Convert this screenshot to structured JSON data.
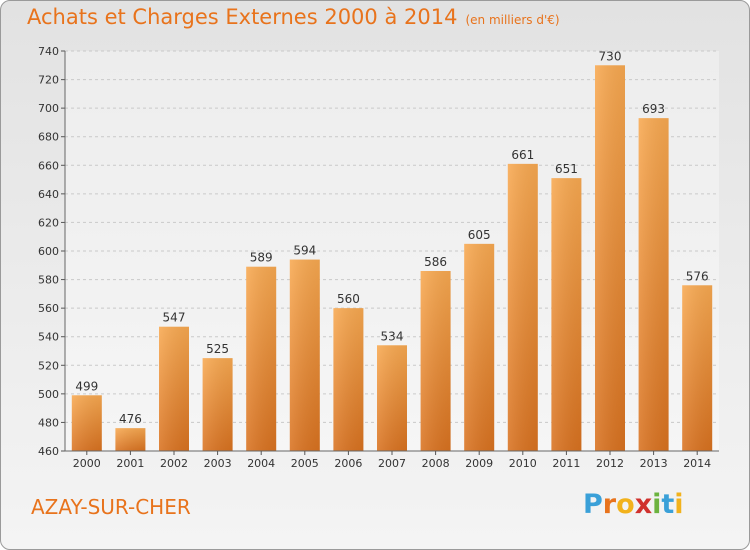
{
  "title": "Achats et Charges Externes 2000 à 2014",
  "subtitle": "(en milliers d'€)",
  "location": "AZAY-SUR-CHER",
  "brand": {
    "letters": [
      "P",
      "r",
      "o",
      "x",
      "i",
      "t",
      "i"
    ],
    "colors": [
      "#3aa0d8",
      "#e8731c",
      "#f2b21c",
      "#d0312d",
      "#6cb33f",
      "#3aa0d8",
      "#f2b21c"
    ]
  },
  "colors": {
    "accent": "#e8731c",
    "bar_light": "#f7a85a",
    "bar_dark": "#d97220"
  },
  "chart_data": {
    "type": "bar",
    "categories": [
      "2000",
      "2001",
      "2002",
      "2003",
      "2004",
      "2005",
      "2006",
      "2007",
      "2008",
      "2009",
      "2010",
      "2011",
      "2012",
      "2013",
      "2014"
    ],
    "values": [
      499,
      476,
      547,
      525,
      589,
      594,
      560,
      534,
      586,
      605,
      661,
      651,
      730,
      693,
      576
    ],
    "ylim": [
      460,
      740
    ],
    "yticks": [
      460,
      480,
      500,
      520,
      540,
      560,
      580,
      600,
      620,
      640,
      660,
      680,
      700,
      720,
      740
    ],
    "grid": true
  }
}
